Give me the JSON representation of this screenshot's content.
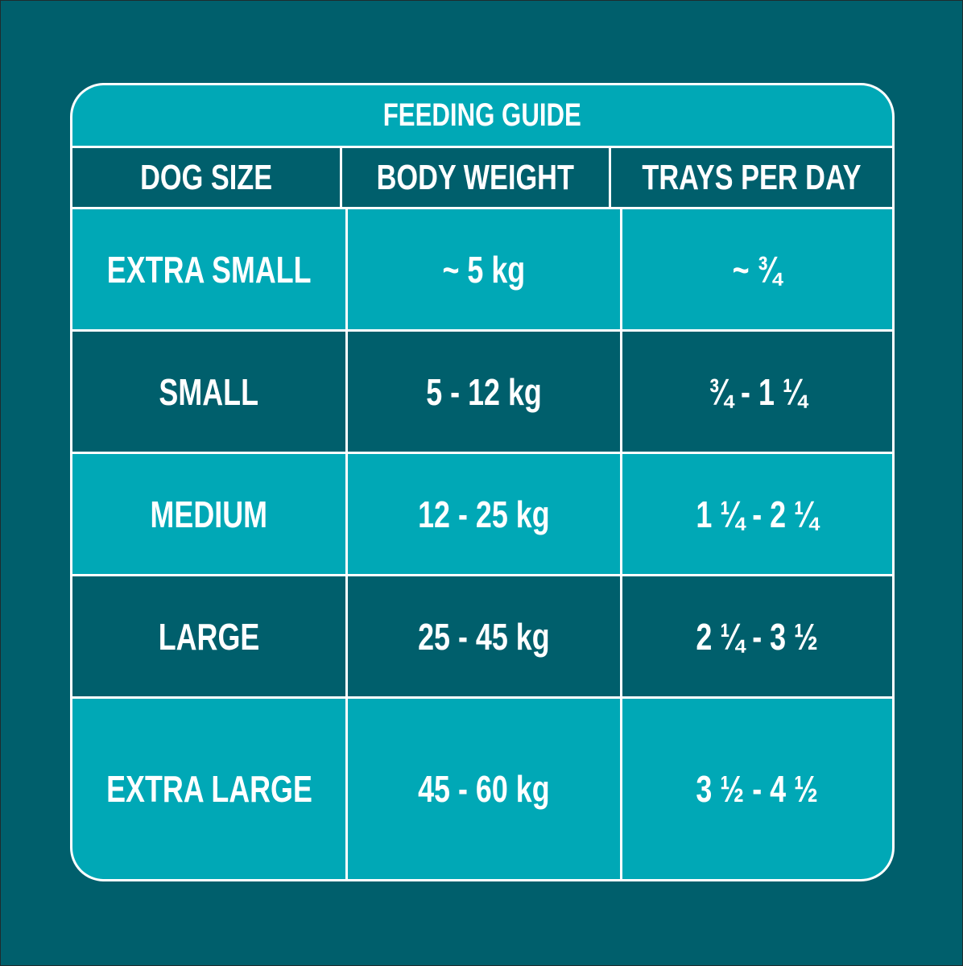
{
  "title": "FEEDING GUIDE",
  "colors": {
    "background": "#005F6C",
    "light_cell": "#00A8B6",
    "dark_cell": "#005F6C",
    "grid_lines": "#FFFFFF",
    "text": "#FFFFFF"
  },
  "table": {
    "columns": [
      "DOG SIZE",
      "BODY WEIGHT",
      "TRAYS PER DAY"
    ],
    "rows": [
      {
        "dog_size": "EXTRA SMALL",
        "body_weight": "~ 5 kg",
        "trays_per_day": "~ ¾"
      },
      {
        "dog_size": "SMALL",
        "body_weight": "5 - 12 kg",
        "trays_per_day": "¾ - 1 ¼"
      },
      {
        "dog_size": "MEDIUM",
        "body_weight": "12 - 25 kg",
        "trays_per_day": "1 ¼ - 2 ¼"
      },
      {
        "dog_size": "LARGE",
        "body_weight": "25 - 45 kg",
        "trays_per_day": "2 ¼ - 3 ½"
      },
      {
        "dog_size": "EXTRA LARGE",
        "body_weight": "45 - 60 kg",
        "trays_per_day": "3 ½ - 4 ½"
      }
    ]
  }
}
